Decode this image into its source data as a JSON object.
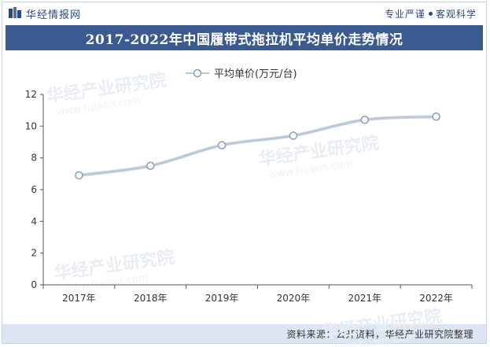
{
  "header": {
    "brand": "华经情报网",
    "tagline_left": "专业严谨",
    "tagline_right": "客观科学"
  },
  "footer": {
    "source": "资料来源：公开资料，华经产业研究院整理"
  },
  "watermark": {
    "cn": "华经产业研究院",
    "en": "www.huaon.com"
  },
  "colors": {
    "title_bg": "#3b5a8f",
    "brand_blue": "#2b4a82",
    "line": "#b9c6dd",
    "marker_stroke": "#8a9bbb",
    "footer_bg": "#dde5f2"
  },
  "chart_data": {
    "type": "line",
    "title": "2017-2022年中国履带式拖拉机平均单价走势情况",
    "categories": [
      "2017年",
      "2018年",
      "2019年",
      "2020年",
      "2021年",
      "2022年"
    ],
    "series": [
      {
        "name": "平均单价(万元/台)",
        "values": [
          6.9,
          7.5,
          8.8,
          9.4,
          10.4,
          10.6
        ]
      }
    ],
    "ylim": [
      0,
      12
    ],
    "yticks": [
      "0",
      "2",
      "4",
      "6",
      "8",
      "10",
      "12"
    ],
    "legend_position": "top-center",
    "grid": false
  }
}
